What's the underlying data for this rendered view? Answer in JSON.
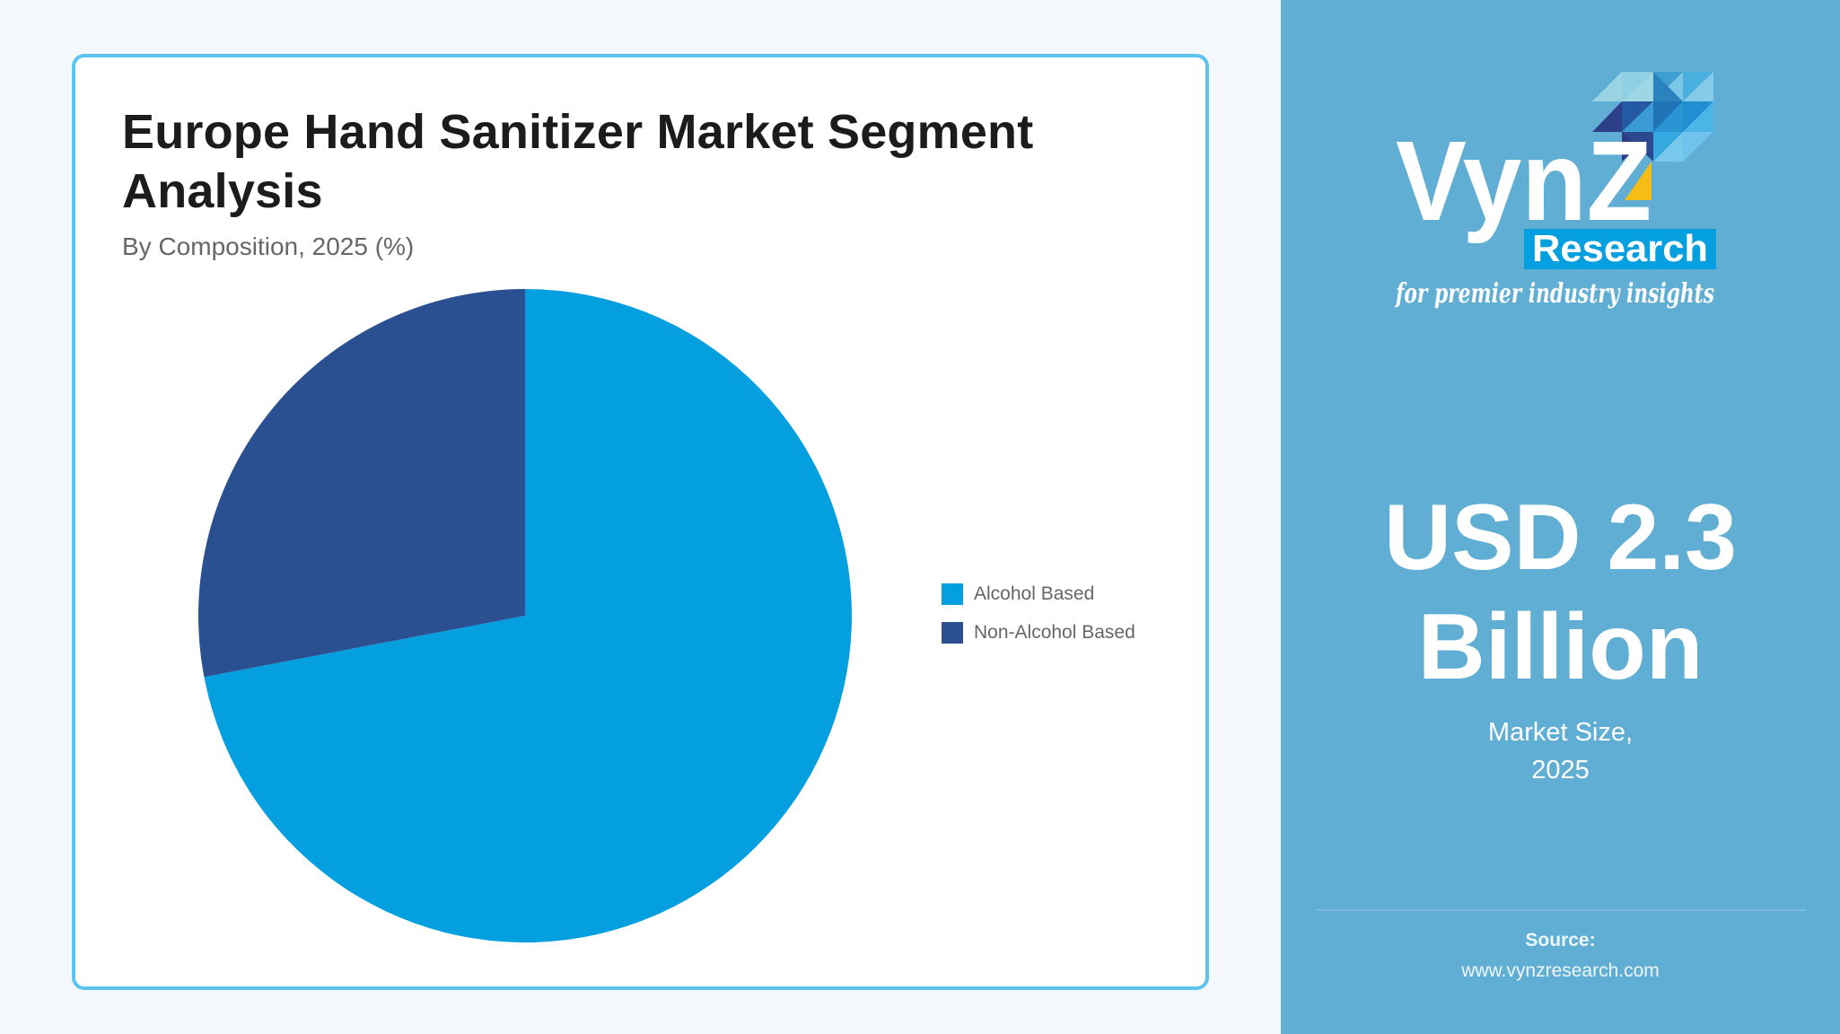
{
  "card": {
    "title": "Europe Hand Sanitizer Market Segment Analysis",
    "subtitle": "By Composition, 2025 (%)"
  },
  "legend": {
    "items": [
      {
        "label": "Alcohol Based",
        "color": "#049fdf"
      },
      {
        "label": "Non-Alcohol Based",
        "color": "#2a5091"
      }
    ]
  },
  "panel": {
    "logo": {
      "wordmark": "VynZ",
      "badge": "Research",
      "tagline": "for premier industry insights"
    },
    "value_line1": "USD 2.3",
    "value_line2": "Billion",
    "caption_line1": "Market Size,",
    "caption_line2": "2025",
    "source_label": "Source:",
    "source_url": "www.vynzresearch.com"
  },
  "colors": {
    "accent_border": "#5bc4ef",
    "panel_bg": "#61aed4",
    "page_bg": "#f4f8fb",
    "alcohol": "#049fdf",
    "non_alcohol": "#2a5091",
    "logo_yellow": "#f6bd16"
  },
  "chart_data": {
    "type": "pie",
    "title": "Europe Hand Sanitizer Market Segment Analysis",
    "subtitle": "By Composition, 2025 (%)",
    "categories": [
      "Alcohol Based",
      "Non-Alcohol Based"
    ],
    "values": [
      72,
      28
    ],
    "unit": "%",
    "colors": [
      "#049fdf",
      "#2a5091"
    ],
    "start_angle_deg": 0,
    "direction": "clockwise",
    "legend_position": "right",
    "data_labels": false
  }
}
